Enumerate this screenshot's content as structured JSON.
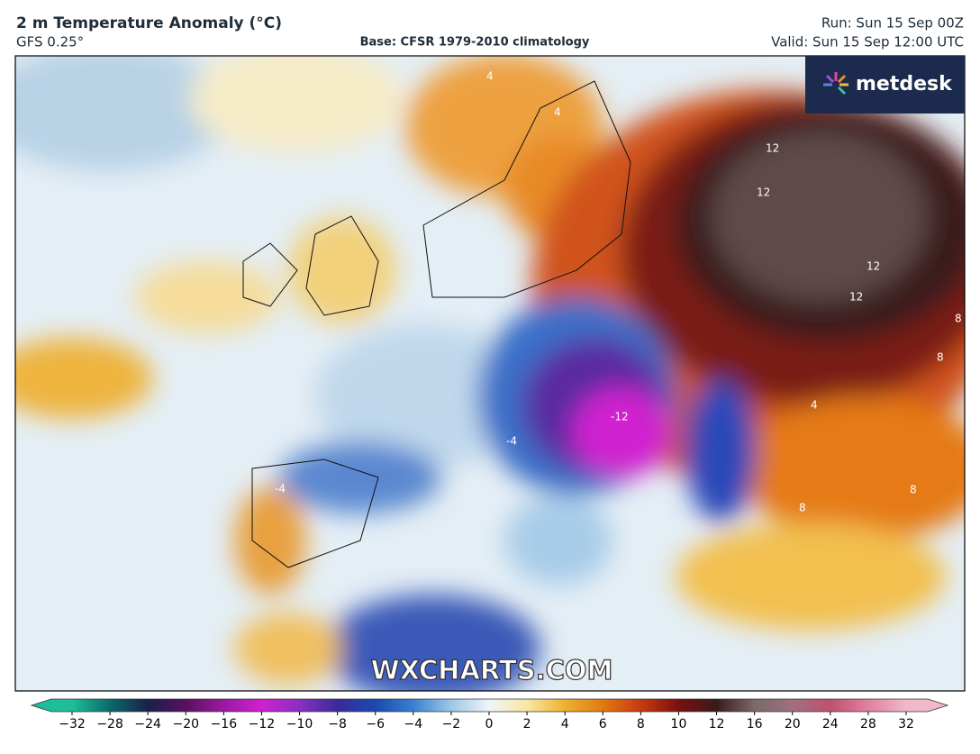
{
  "header": {
    "title": "2 m Temperature Anomaly (°C)",
    "model": "GFS 0.25°",
    "base": "Base: CFSR 1979-2010 climatology",
    "run": "Run: Sun 15 Sep 00Z",
    "valid": "Valid: Sun 15 Sep 12:00 UTC"
  },
  "logo": "metdesk",
  "watermark": "WXCHARTS.COM",
  "map": {
    "contour_labels": [
      "12",
      "12",
      "12",
      "12",
      "8",
      "8",
      "8",
      "-12",
      "-4",
      "-4",
      "4",
      "4",
      "4",
      "8"
    ]
  },
  "colorbar": {
    "ticks": [
      {
        "value": -32,
        "label": "−32"
      },
      {
        "value": -28,
        "label": "−28"
      },
      {
        "value": -24,
        "label": "−24"
      },
      {
        "value": -20,
        "label": "−20"
      },
      {
        "value": -16,
        "label": "−16"
      },
      {
        "value": -12,
        "label": "−12"
      },
      {
        "value": -10,
        "label": "−10"
      },
      {
        "value": -8,
        "label": "−8"
      },
      {
        "value": -6,
        "label": "−6"
      },
      {
        "value": -4,
        "label": "−4"
      },
      {
        "value": -2,
        "label": "−2"
      },
      0,
      2,
      4,
      6,
      8,
      10,
      12,
      16,
      20,
      24,
      28,
      32
    ],
    "colors": [
      "#1dbf9a",
      "#0b6b6b",
      "#1a1f4a",
      "#5a1060",
      "#9a1aa0",
      "#d020d0",
      "#8a30c0",
      "#3a2a9a",
      "#1a4ab0",
      "#3a80d0",
      "#9cc8e8",
      "#f0f4f8",
      "#f8e8a0",
      "#f0b030",
      "#e07a10",
      "#c83a10",
      "#7a1010",
      "#3a1a1a",
      "#7a6a68",
      "#a07080",
      "#c05070",
      "#e080a0",
      "#f0b8c8"
    ]
  }
}
